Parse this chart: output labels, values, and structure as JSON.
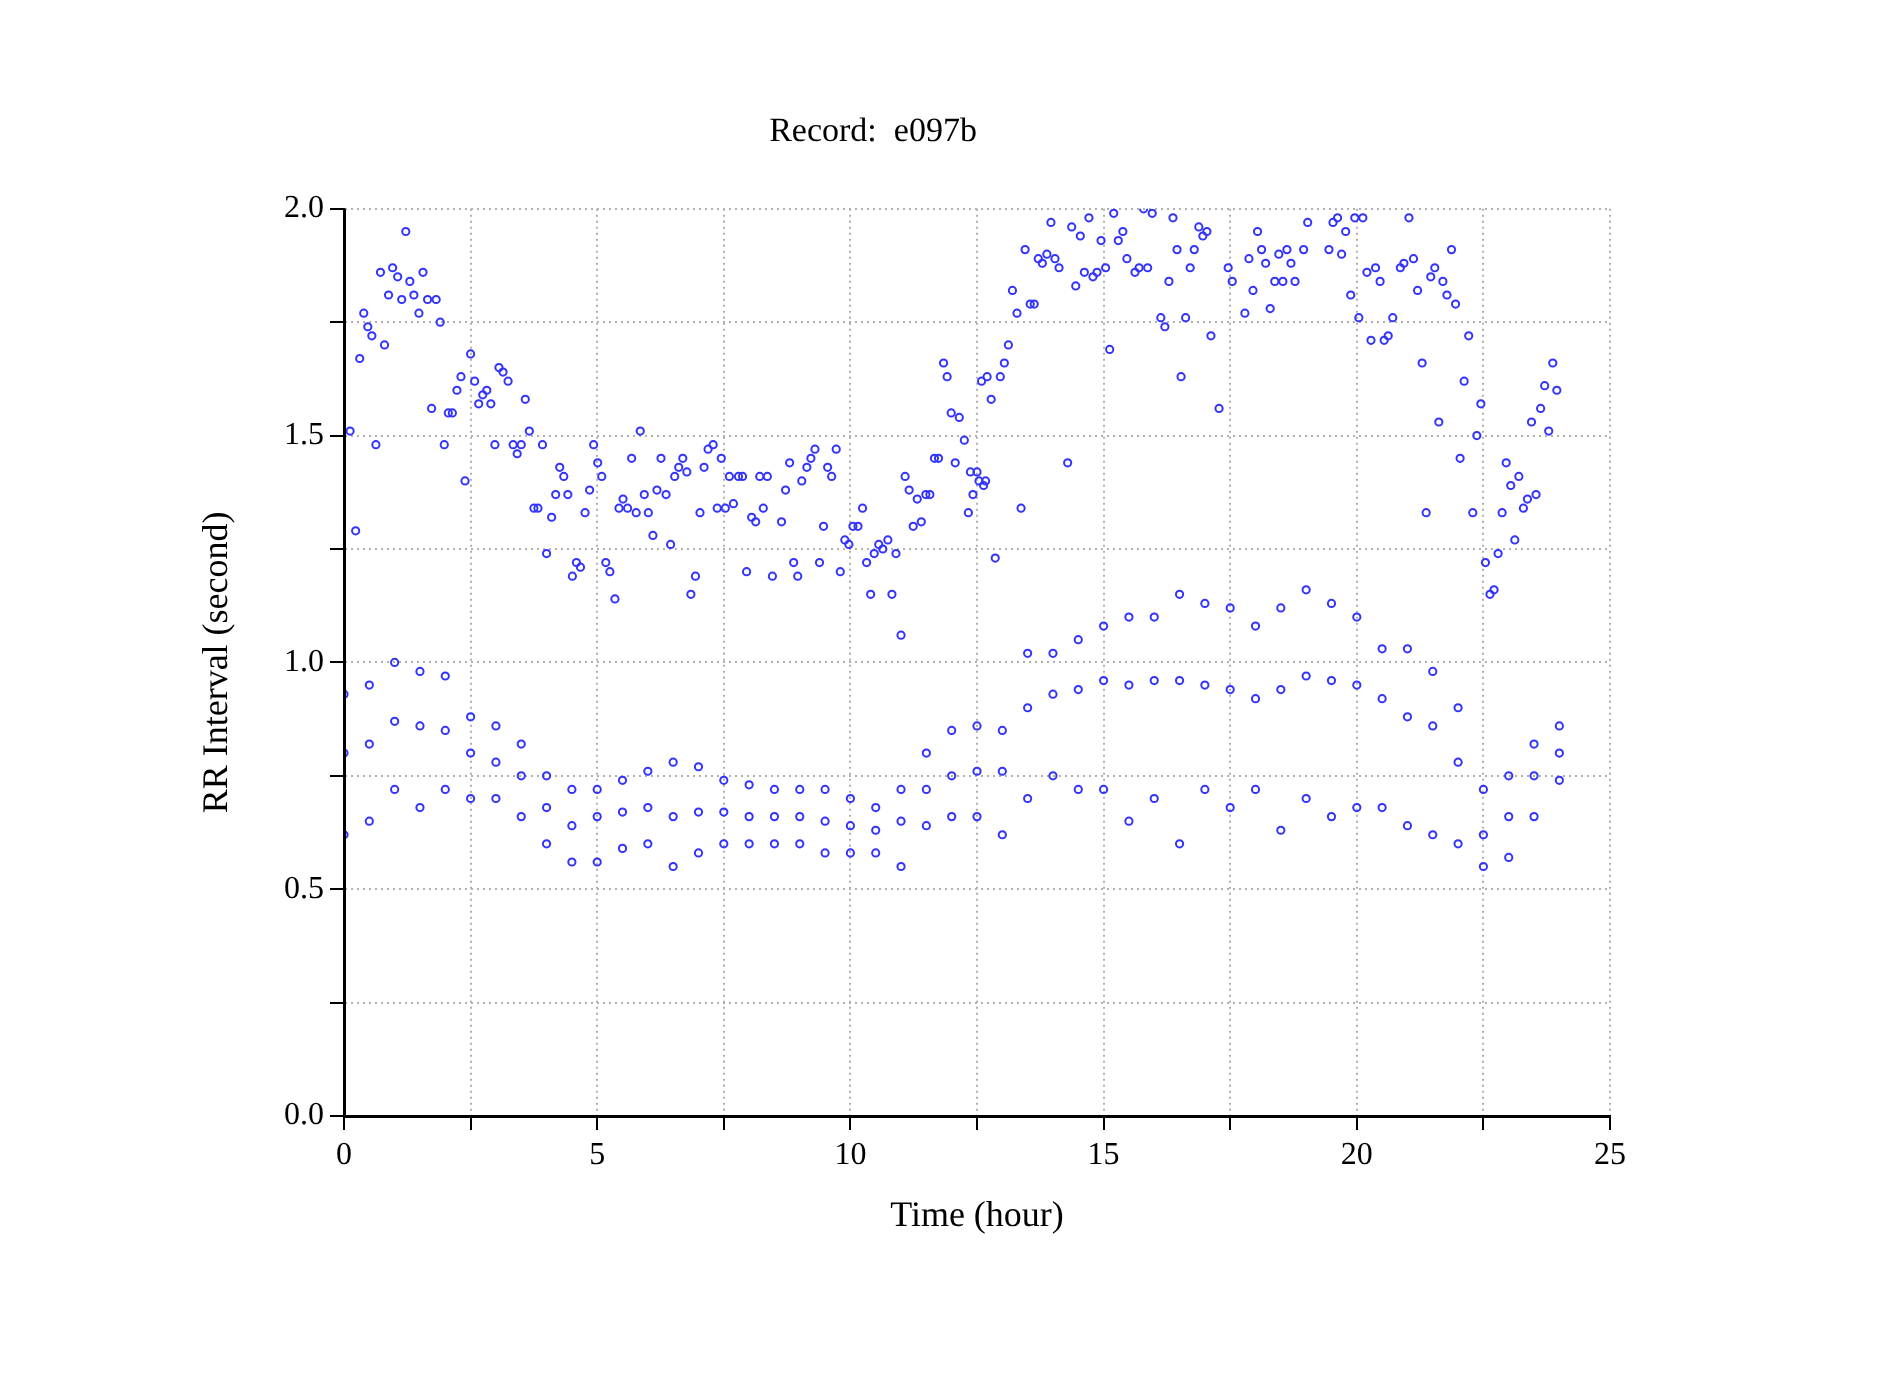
{
  "chart_data": {
    "type": "scatter",
    "title": "Record:  e097b",
    "xlabel": "Time (hour)",
    "ylabel": "RR Interval (second)",
    "color": "#3333ff",
    "marker": "circle",
    "grid": true,
    "xlim": [
      0,
      25
    ],
    "xticks": [
      0,
      {
        "value": 2.5,
        "label": null
      },
      5,
      {
        "value": 7.5,
        "label": null
      },
      10,
      {
        "value": 12.5,
        "label": null
      },
      15,
      {
        "value": 17.5,
        "label": null
      },
      20,
      {
        "value": 22.5,
        "label": null
      },
      25
    ],
    "ylim": [
      0,
      2
    ],
    "yticks": [
      {
        "value": 0,
        "label": "0.0"
      },
      {
        "value": 0.25,
        "label": null
      },
      {
        "value": 0.5,
        "label": "0.5"
      },
      {
        "value": 0.75,
        "label": null
      },
      {
        "value": 1,
        "label": "1.0"
      },
      {
        "value": 1.25,
        "label": null
      },
      {
        "value": 1.5,
        "label": "1.5"
      },
      {
        "value": 1.75,
        "label": null
      },
      {
        "value": 2,
        "label": "2.0"
      }
    ],
    "x": [
      0,
      0,
      0,
      0.5,
      0.5,
      0.5,
      1,
      1,
      1,
      1.5,
      1.5,
      1.5,
      2,
      2,
      2,
      2.5,
      2.5,
      2.5,
      3,
      3,
      3,
      3.5,
      3.5,
      3.5,
      4,
      4,
      4,
      4.5,
      4.5,
      4.5,
      5,
      5,
      5,
      5.5,
      5.5,
      5.5,
      6,
      6,
      6,
      6.5,
      6.5,
      6.5,
      7,
      7,
      7,
      7.5,
      7.5,
      7.5,
      8,
      8,
      8,
      8.5,
      8.5,
      8.5,
      9,
      9,
      9,
      9.5,
      9.5,
      9.5,
      10,
      10,
      10,
      10.5,
      10.5,
      10.5,
      11,
      11,
      11,
      11.5,
      11.5,
      11.5,
      12,
      12,
      12,
      12.5,
      12.5,
      12.5,
      13,
      13,
      13,
      13.5,
      13.5,
      13.5,
      14,
      14,
      14,
      14.5,
      14.5,
      14.5,
      15,
      15,
      15,
      15.5,
      15.5,
      15.5,
      16,
      16,
      16,
      16.5,
      16.5,
      16.5,
      17,
      17,
      17,
      17.5,
      17.5,
      17.5,
      18,
      18,
      18,
      18.5,
      18.5,
      18.5,
      19,
      19,
      19,
      19.5,
      19.5,
      19.5,
      20,
      20,
      20,
      20.5,
      20.5,
      20.5,
      21,
      21,
      21,
      21.5,
      21.5,
      21.5,
      22,
      22,
      22,
      22.5,
      22.5,
      22.5,
      23,
      23,
      23,
      23.5,
      23.5,
      23.5,
      24,
      24,
      24,
      0.12,
      0.23,
      0.31,
      0.39,
      0.47,
      0.55,
      0.63,
      0.72,
      0.8,
      0.88,
      0.96,
      1.06,
      1.14,
      1.22,
      1.3,
      1.38,
      1.48,
      1.56,
      1.65,
      1.73,
      1.82,
      1.9,
      1.98,
      2.06,
      2.14,
      2.23,
      2.31,
      2.39,
      2.5,
      2.58,
      2.66,
      2.74,
      2.82,
      2.9,
      2.98,
      3.06,
      3.14,
      3.24,
      3.34,
      3.42,
      3.5,
      3.58,
      3.66,
      3.75,
      3.83,
      3.92,
      4,
      4.1,
      4.18,
      4.26,
      4.34,
      4.42,
      4.51,
      4.59,
      4.67,
      4.76,
      4.85,
      4.93,
      5.01,
      5.09,
      5.17,
      5.25,
      5.35,
      5.43,
      5.51,
      5.6,
      5.68,
      5.77,
      5.85,
      5.93,
      6.01,
      6.1,
      6.18,
      6.26,
      6.36,
      6.45,
      6.53,
      6.61,
      6.69,
      6.77,
      6.85,
      6.94,
      7.03,
      7.11,
      7.19,
      7.29,
      7.37,
      7.45,
      7.53,
      7.61,
      7.69,
      7.79,
      7.87,
      7.95,
      8.05,
      8.13,
      8.21,
      8.28,
      8.36,
      8.46,
      8.64,
      8.72,
      8.8,
      8.88,
      8.96,
      9.04,
      9.14,
      9.22,
      9.3,
      9.39,
      9.47,
      9.55,
      9.63,
      9.72,
      9.8,
      9.89,
      9.97,
      10.05,
      10.15,
      10.24,
      10.32,
      10.4,
      10.47,
      10.56,
      10.64,
      10.74,
      10.82,
      10.9,
      11,
      11.08,
      11.16,
      11.24,
      11.32,
      11.4,
      11.49,
      11.57,
      11.66,
      11.74,
      11.84,
      11.91,
      11.99,
      12.07,
      12.15,
      12.25,
      12.33,
      12.42,
      12.5,
      12.59,
      12.67,
      12.7,
      12.78,
      12.96,
      13.04,
      13.12,
      12.86,
      12.37,
      12.54,
      12.63,
      13.2,
      13.29,
      13.37,
      13.45,
      13.55,
      13.63,
      13.71,
      13.79,
      13.88,
      13.96,
      14.04,
      14.12,
      14.29,
      14.37,
      14.45,
      14.54,
      14.62,
      14.71,
      14.79,
      14.87,
      14.95,
      15.04,
      15.12,
      15.2,
      15.29,
      15.38,
      15.46,
      15.62,
      15.7,
      15.79,
      15.87,
      15.96,
      16.13,
      16.21,
      16.29,
      16.37,
      16.45,
      16.53,
      16.62,
      16.71,
      16.79,
      16.88,
      16.96,
      17.04,
      17.12,
      17.28,
      17.46,
      17.54,
      17.79,
      17.87,
      17.95,
      18.04,
      18.12,
      18.2,
      18.29,
      18.38,
      18.46,
      18.54,
      18.62,
      18.7,
      18.78,
      18.95,
      19.03,
      19.45,
      19.53,
      19.62,
      19.7,
      19.78,
      19.88,
      19.96,
      20.04,
      20.12,
      20.2,
      20.28,
      20.37,
      20.46,
      20.54,
      20.62,
      20.71,
      20.86,
      20.93,
      21.03,
      21.12,
      21.2,
      21.29,
      21.37,
      21.46,
      21.54,
      21.62,
      21.7,
      21.78,
      21.87,
      21.95,
      22.04,
      22.12,
      22.21,
      22.29,
      22.37,
      22.45,
      22.54,
      22.63,
      22.71,
      22.79,
      22.87,
      22.95,
      23.04,
      23.12,
      23.2,
      23.29,
      23.37,
      23.45,
      23.54,
      23.63,
      23.71,
      23.79,
      23.87,
      23.95
    ],
    "values": [
      0.93,
      0.8,
      0.62,
      0.95,
      0.82,
      0.65,
      1,
      0.87,
      0.72,
      0.98,
      0.86,
      0.68,
      0.97,
      0.85,
      0.72,
      0.88,
      0.8,
      0.7,
      0.86,
      0.78,
      0.7,
      0.82,
      0.75,
      0.66,
      0.75,
      0.68,
      0.6,
      0.72,
      0.64,
      0.56,
      0.72,
      0.66,
      0.56,
      0.74,
      0.67,
      0.59,
      0.76,
      0.68,
      0.6,
      0.78,
      0.66,
      0.55,
      0.77,
      0.67,
      0.58,
      0.74,
      0.67,
      0.6,
      0.73,
      0.66,
      0.6,
      0.72,
      0.66,
      0.6,
      0.72,
      0.66,
      0.6,
      0.72,
      0.65,
      0.58,
      0.7,
      0.64,
      0.58,
      0.68,
      0.63,
      0.58,
      0.72,
      0.65,
      0.55,
      0.8,
      0.72,
      0.64,
      0.85,
      0.75,
      0.66,
      0.86,
      0.76,
      0.66,
      0.85,
      0.76,
      0.62,
      1.02,
      0.9,
      0.7,
      1.02,
      0.93,
      0.75,
      1.05,
      0.94,
      0.72,
      1.08,
      0.96,
      0.72,
      1.1,
      0.95,
      0.65,
      1.1,
      0.96,
      0.7,
      1.15,
      0.96,
      0.6,
      1.13,
      0.95,
      0.72,
      1.12,
      0.94,
      0.68,
      1.08,
      0.92,
      0.72,
      1.12,
      0.94,
      0.63,
      1.16,
      0.97,
      0.7,
      1.13,
      0.96,
      0.66,
      1.1,
      0.95,
      0.68,
      1.03,
      0.92,
      0.68,
      1.03,
      0.88,
      0.64,
      0.98,
      0.86,
      0.62,
      0.9,
      0.78,
      0.6,
      0.72,
      0.62,
      0.55,
      0.75,
      0.66,
      0.57,
      0.82,
      0.75,
      0.66,
      0.86,
      0.8,
      0.74,
      1.51,
      1.29,
      1.67,
      1.77,
      1.74,
      1.72,
      1.48,
      1.86,
      1.7,
      1.81,
      1.87,
      1.85,
      1.8,
      1.95,
      1.84,
      1.81,
      1.77,
      1.86,
      1.8,
      1.56,
      1.8,
      1.75,
      1.48,
      1.55,
      1.55,
      1.6,
      1.63,
      1.4,
      1.68,
      1.62,
      1.57,
      1.59,
      1.6,
      1.57,
      1.48,
      1.65,
      1.64,
      1.62,
      1.48,
      1.46,
      1.48,
      1.58,
      1.51,
      1.34,
      1.34,
      1.48,
      1.24,
      1.32,
      1.37,
      1.43,
      1.41,
      1.37,
      1.19,
      1.22,
      1.21,
      1.33,
      1.38,
      1.48,
      1.44,
      1.41,
      1.22,
      1.2,
      1.14,
      1.34,
      1.36,
      1.34,
      1.45,
      1.33,
      1.51,
      1.37,
      1.33,
      1.28,
      1.38,
      1.45,
      1.37,
      1.26,
      1.41,
      1.43,
      1.45,
      1.42,
      1.15,
      1.19,
      1.33,
      1.43,
      1.47,
      1.48,
      1.34,
      1.45,
      1.34,
      1.41,
      1.35,
      1.41,
      1.41,
      1.2,
      1.32,
      1.31,
      1.41,
      1.34,
      1.41,
      1.19,
      1.31,
      1.38,
      1.44,
      1.22,
      1.19,
      1.4,
      1.43,
      1.45,
      1.47,
      1.22,
      1.3,
      1.43,
      1.41,
      1.47,
      1.2,
      1.27,
      1.26,
      1.3,
      1.3,
      1.34,
      1.22,
      1.15,
      1.24,
      1.26,
      1.25,
      1.27,
      1.15,
      1.24,
      1.06,
      1.41,
      1.38,
      1.3,
      1.36,
      1.31,
      1.37,
      1.37,
      1.45,
      1.45,
      1.66,
      1.63,
      1.55,
      1.44,
      1.54,
      1.49,
      1.33,
      1.37,
      1.42,
      1.62,
      1.4,
      1.63,
      1.58,
      1.63,
      1.66,
      1.7,
      1.23,
      1.42,
      1.4,
      1.39,
      1.82,
      1.77,
      1.34,
      1.91,
      1.79,
      1.79,
      1.89,
      1.88,
      1.9,
      1.97,
      1.89,
      1.87,
      1.44,
      1.96,
      1.83,
      1.94,
      1.86,
      1.98,
      1.85,
      1.86,
      1.93,
      1.87,
      1.69,
      1.99,
      1.93,
      1.95,
      1.89,
      1.86,
      1.87,
      2,
      1.87,
      1.99,
      1.76,
      1.74,
      1.84,
      1.98,
      1.91,
      1.63,
      1.76,
      1.87,
      1.91,
      1.96,
      1.94,
      1.95,
      1.72,
      1.56,
      1.87,
      1.84,
      1.77,
      1.89,
      1.82,
      1.95,
      1.91,
      1.88,
      1.78,
      1.84,
      1.9,
      1.84,
      1.91,
      1.88,
      1.84,
      1.91,
      1.97,
      1.91,
      1.97,
      1.98,
      1.9,
      1.95,
      1.81,
      1.98,
      1.76,
      1.98,
      1.86,
      1.71,
      1.87,
      1.84,
      1.71,
      1.72,
      1.76,
      1.87,
      1.88,
      1.98,
      1.89,
      1.82,
      1.66,
      1.33,
      1.85,
      1.87,
      1.53,
      1.84,
      1.81,
      1.91,
      1.79,
      1.45,
      1.62,
      1.72,
      1.33,
      1.5,
      1.57,
      1.22,
      1.15,
      1.16,
      1.24,
      1.33,
      1.44,
      1.39,
      1.27,
      1.41,
      1.34,
      1.36,
      1.53,
      1.37,
      1.56,
      1.61,
      1.51,
      1.66,
      1.6
    ]
  }
}
